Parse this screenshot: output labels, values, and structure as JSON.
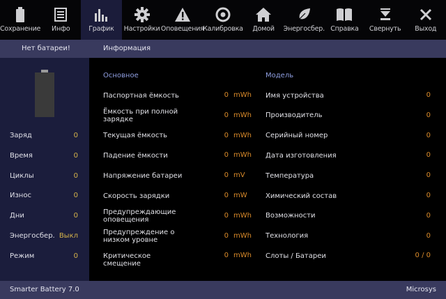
{
  "toolbar": [
    {
      "label": "Сохранение",
      "icon": "battery-icon"
    },
    {
      "label": "Инфо",
      "icon": "list-icon"
    },
    {
      "label": "График",
      "icon": "bar-chart-icon",
      "active": true
    },
    {
      "label": "Настройки",
      "icon": "gear-icon"
    },
    {
      "label": "Оповещения",
      "icon": "warning-icon"
    },
    {
      "label": "Калибровка",
      "icon": "target-icon"
    },
    {
      "label": "Домой",
      "icon": "home-icon"
    },
    {
      "label": "Энергосбер.",
      "icon": "leaf-icon"
    },
    {
      "label": "Справка",
      "icon": "book-icon"
    },
    {
      "label": "Свернуть",
      "icon": "minimize-icon"
    },
    {
      "label": "Выход",
      "icon": "close-icon"
    }
  ],
  "subbar": {
    "left": "Нет батареи!",
    "right": "Информация"
  },
  "sidebar": [
    {
      "label": "Заряд",
      "value": "0"
    },
    {
      "label": "Время",
      "value": "0"
    },
    {
      "label": "Циклы",
      "value": "0"
    },
    {
      "label": "Износ",
      "value": "0"
    },
    {
      "label": "Дни",
      "value": "0"
    },
    {
      "label": "Энергосбер.",
      "value": "Выкл"
    },
    {
      "label": "Режим",
      "value": "0"
    }
  ],
  "main": {
    "left_header": "Основное",
    "right_header": "Модель",
    "left": [
      {
        "label": "Паспортная ёмкость",
        "value": "0",
        "unit": "mWh"
      },
      {
        "label": "Ёмкость при полной зарядке",
        "value": "0",
        "unit": "mWh"
      },
      {
        "label": "Текущая ёмкость",
        "value": "0",
        "unit": "mWh"
      },
      {
        "label": "Падение ёмкости",
        "value": "0",
        "unit": "mWh"
      },
      {
        "label": "Напряжение батареи",
        "value": "0",
        "unit": "mV"
      },
      {
        "label": "Скорость зарядки",
        "value": "0",
        "unit": "mW"
      },
      {
        "label": "Предупреждающие оповещения",
        "value": "0",
        "unit": "mWh"
      },
      {
        "label": "Предупреждение о низком уровне",
        "value": "0",
        "unit": "mWh"
      },
      {
        "label": "Критическое смещение",
        "value": "0",
        "unit": "mWh"
      }
    ],
    "right": [
      {
        "label": "Имя устройства",
        "value": "0"
      },
      {
        "label": "Производитель",
        "value": "0"
      },
      {
        "label": "Серийный номер",
        "value": "0"
      },
      {
        "label": "Дата изготовления",
        "value": "0"
      },
      {
        "label": "Температура",
        "value": "0"
      },
      {
        "label": "Химический состав",
        "value": "0"
      },
      {
        "label": "Возможности",
        "value": "0"
      },
      {
        "label": "Технология",
        "value": "0"
      },
      {
        "label": "Слоты / Батареи",
        "value": "0 / 0"
      }
    ]
  },
  "footer": {
    "left": "Smarter Battery 7.0",
    "right": "Microsys"
  }
}
